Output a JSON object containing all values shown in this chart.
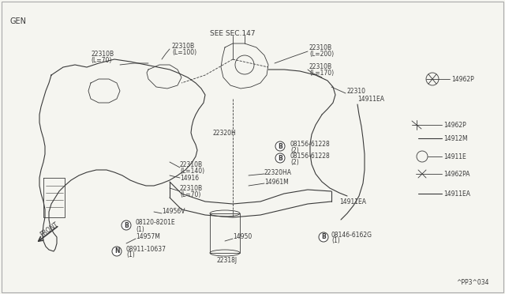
{
  "background_color": "#f5f5f0",
  "line_color": "#3a3a3a",
  "label_color": "#3a3a3a",
  "gen_label": "GEN",
  "see_sec_label": "SEE SEC.147",
  "front_label": "FRONT",
  "figure_num": "^PP3^034",
  "label_fontsize": 6.5,
  "small_fontsize": 5.5,
  "title_fontsize": 7.0
}
